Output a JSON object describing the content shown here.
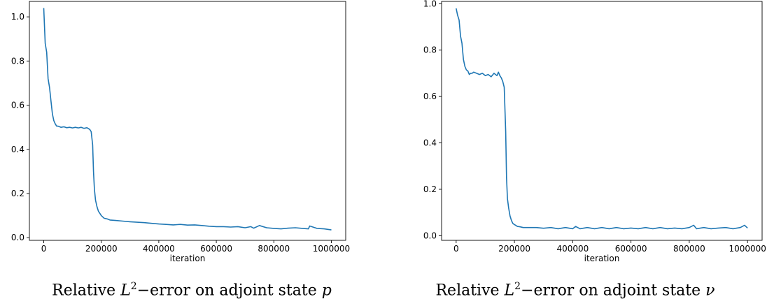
{
  "chart_data": [
    {
      "type": "line",
      "xlabel": "iteration",
      "ylabel": "",
      "caption": {
        "prefix": "Relative ",
        "L": "L",
        "exp": "2",
        "mid": "−error on adjoint state ",
        "var": "p"
      },
      "xlim": [
        -50000,
        1050000
      ],
      "ylim": [
        -0.012,
        1.07
      ],
      "xticks": [
        0,
        200000,
        400000,
        600000,
        800000,
        1000000
      ],
      "xtick_labels": [
        "0",
        "200000",
        "400000",
        "600000",
        "800000",
        "1000000"
      ],
      "yticks": [
        0.0,
        0.2,
        0.4,
        0.6,
        0.8,
        1.0
      ],
      "ytick_labels": [
        "0.0",
        "0.2",
        "0.4",
        "0.6",
        "0.8",
        "1.0"
      ],
      "color": "#1f77b4",
      "series": [
        {
          "x": [
            0,
            5000,
            10000,
            15000,
            20000,
            25000,
            30000,
            35000,
            40000,
            45000,
            50000,
            60000,
            70000,
            80000,
            90000,
            100000,
            110000,
            120000,
            130000,
            140000,
            150000,
            160000,
            165000,
            170000,
            173000,
            176000,
            180000,
            185000,
            190000,
            195000,
            200000,
            210000,
            220000,
            230000,
            250000,
            275000,
            300000,
            325000,
            350000,
            375000,
            400000,
            425000,
            450000,
            475000,
            500000,
            525000,
            550000,
            575000,
            600000,
            625000,
            650000,
            675000,
            700000,
            720000,
            730000,
            750000,
            775000,
            800000,
            825000,
            850000,
            875000,
            900000,
            920000,
            925000,
            950000,
            975000,
            1000000
          ],
          "y": [
            1.04,
            0.88,
            0.84,
            0.72,
            0.68,
            0.62,
            0.56,
            0.53,
            0.515,
            0.505,
            0.505,
            0.5,
            0.502,
            0.498,
            0.5,
            0.497,
            0.5,
            0.497,
            0.5,
            0.495,
            0.498,
            0.49,
            0.48,
            0.42,
            0.3,
            0.22,
            0.17,
            0.14,
            0.12,
            0.11,
            0.1,
            0.088,
            0.085,
            0.08,
            0.078,
            0.075,
            0.072,
            0.07,
            0.068,
            0.065,
            0.062,
            0.06,
            0.058,
            0.06,
            0.057,
            0.058,
            0.055,
            0.052,
            0.05,
            0.05,
            0.048,
            0.05,
            0.045,
            0.05,
            0.043,
            0.055,
            0.045,
            0.042,
            0.04,
            0.043,
            0.045,
            0.042,
            0.04,
            0.053,
            0.042,
            0.04,
            0.035
          ]
        }
      ]
    },
    {
      "type": "line",
      "xlabel": "iteration",
      "ylabel": "",
      "caption": {
        "prefix": "Relative ",
        "L": "L",
        "exp": "2",
        "mid": "−error on adjoint state ",
        "var": "ν"
      },
      "xlim": [
        -50000,
        1050000
      ],
      "ylim": [
        -0.02,
        1.01
      ],
      "xticks": [
        0,
        200000,
        400000,
        600000,
        800000,
        1000000
      ],
      "xtick_labels": [
        "0",
        "200000",
        "400000",
        "600000",
        "800000",
        "1000000"
      ],
      "yticks": [
        0.0,
        0.2,
        0.4,
        0.6,
        0.8,
        1.0
      ],
      "ytick_labels": [
        "0.0",
        "0.2",
        "0.4",
        "0.6",
        "0.8",
        "1.0"
      ],
      "color": "#1f77b4",
      "series": [
        {
          "x": [
            0,
            5000,
            10000,
            15000,
            20000,
            25000,
            30000,
            35000,
            40000,
            45000,
            50000,
            55000,
            60000,
            70000,
            80000,
            90000,
            100000,
            110000,
            120000,
            130000,
            140000,
            145000,
            150000,
            155000,
            160000,
            165000,
            170000,
            173000,
            176000,
            180000,
            185000,
            190000,
            195000,
            200000,
            210000,
            220000,
            230000,
            250000,
            275000,
            300000,
            325000,
            350000,
            375000,
            400000,
            410000,
            425000,
            450000,
            475000,
            500000,
            525000,
            550000,
            575000,
            600000,
            625000,
            650000,
            675000,
            700000,
            725000,
            750000,
            775000,
            800000,
            815000,
            825000,
            850000,
            875000,
            900000,
            925000,
            950000,
            975000,
            990000,
            1000000
          ],
          "y": [
            0.98,
            0.95,
            0.93,
            0.86,
            0.83,
            0.76,
            0.73,
            0.715,
            0.71,
            0.695,
            0.7,
            0.7,
            0.705,
            0.7,
            0.695,
            0.7,
            0.69,
            0.695,
            0.685,
            0.7,
            0.69,
            0.705,
            0.69,
            0.68,
            0.665,
            0.64,
            0.45,
            0.25,
            0.16,
            0.12,
            0.085,
            0.065,
            0.052,
            0.048,
            0.04,
            0.038,
            0.035,
            0.035,
            0.035,
            0.032,
            0.035,
            0.03,
            0.035,
            0.03,
            0.04,
            0.03,
            0.035,
            0.03,
            0.035,
            0.03,
            0.035,
            0.03,
            0.033,
            0.03,
            0.035,
            0.03,
            0.035,
            0.03,
            0.033,
            0.03,
            0.035,
            0.045,
            0.03,
            0.035,
            0.03,
            0.033,
            0.035,
            0.03,
            0.035,
            0.045,
            0.033
          ]
        }
      ]
    }
  ]
}
